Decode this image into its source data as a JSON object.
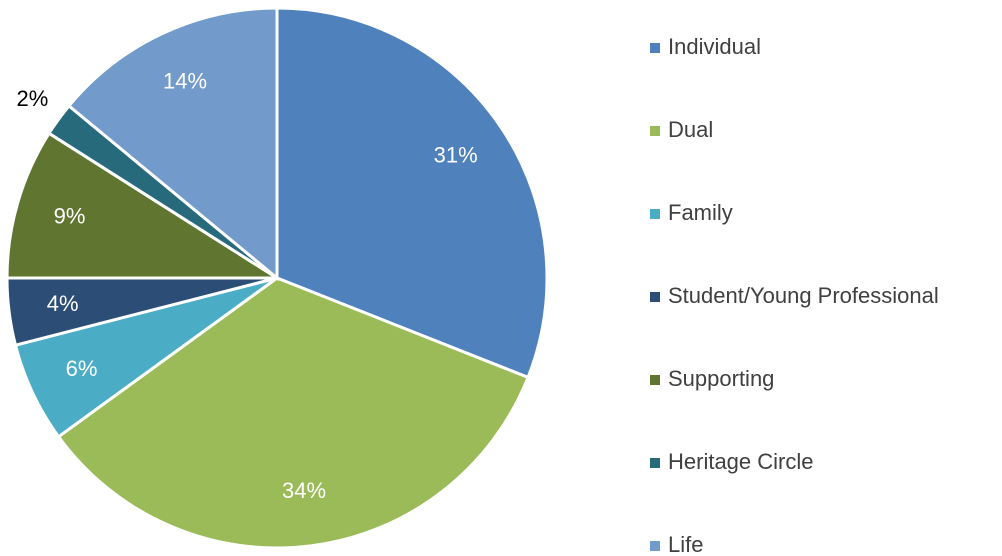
{
  "chart_data": {
    "type": "pie",
    "categories": [
      "Individual",
      "Dual",
      "Family",
      "Student/Young Professional",
      "Supporting",
      "Heritage Circle",
      "Life"
    ],
    "values": [
      31,
      34,
      6,
      4,
      9,
      2,
      14
    ],
    "value_labels": [
      "31%",
      "34%",
      "6%",
      "4%",
      "9%",
      "2%",
      "14%"
    ],
    "colors": [
      "#4f81bd",
      "#9bbb59",
      "#4bacc6",
      "#2c4d75",
      "#5f7530",
      "#276a7c",
      "#729aca"
    ],
    "legend": "right"
  }
}
